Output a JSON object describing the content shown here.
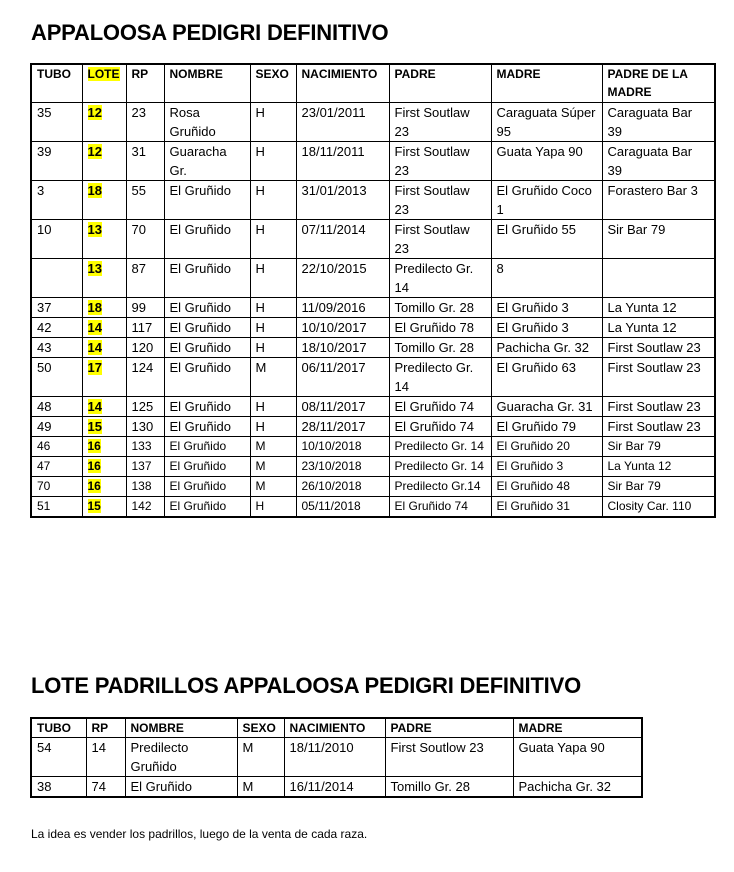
{
  "title1": "APPALOOSA PEDIGRI DEFINITIVO",
  "table1": {
    "headers": [
      "TUBO",
      "LOTE",
      "RP",
      "NOMBRE",
      "SEXO",
      "NACIMIENTO",
      "PADRE",
      "MADRE",
      "PADRE DE LA MADRE"
    ],
    "rows": [
      [
        "35",
        "12",
        "23",
        "Rosa Gruñido",
        "H",
        "23/01/2011",
        "First Soutlaw 23",
        "Caraguata Súper 95",
        "Caraguata Bar 39"
      ],
      [
        "39",
        "12",
        "31",
        "Guaracha Gr.",
        "H",
        "18/11/2011",
        "First Soutlaw 23",
        "Guata Yapa 90",
        "Caraguata Bar 39"
      ],
      [
        "3",
        "18",
        "55",
        "El Gruñido",
        "H",
        "31/01/2013",
        "First Soutlaw 23",
        "El Gruñido Coco 1",
        "Forastero Bar 3"
      ],
      [
        "10",
        "13",
        "70",
        "El Gruñido",
        "H",
        "07/11/2014",
        "First Soutlaw 23",
        "El Gruñido 55",
        "Sir Bar 79"
      ],
      [
        "",
        "13",
        "87",
        "El Gruñido",
        "H",
        "22/10/2015",
        "Predilecto Gr. 14",
        "8",
        ""
      ],
      [
        "37",
        "18",
        "99",
        "El Gruñido",
        "H",
        "11/09/2016",
        "Tomillo Gr. 28",
        "El Gruñido 3",
        "La Yunta 12"
      ],
      [
        "42",
        "14",
        "117",
        "El Gruñido",
        "H",
        "10/10/2017",
        "El Gruñido 78",
        "El Gruñido 3",
        "La Yunta 12"
      ],
      [
        "43",
        "14",
        "120",
        "El Gruñido",
        "H",
        "18/10/2017",
        "Tomillo Gr. 28",
        "Pachicha Gr. 32",
        "First Soutlaw 23"
      ],
      [
        "50",
        "17",
        "124",
        "El Gruñido",
        "M",
        "06/11/2017",
        "Predilecto Gr. 14",
        "El Gruñido 63",
        "First Soutlaw 23"
      ],
      [
        "48",
        "14",
        "125",
        "El Gruñido",
        "H",
        "08/11/2017",
        "El Gruñido 74",
        "Guaracha Gr. 31",
        "First Soutlaw 23"
      ],
      [
        "49",
        "15",
        "130",
        "El Gruñido",
        "H",
        "28/11/2017",
        "El Gruñido 74",
        "El Gruñido 79",
        "First Soutlaw 23"
      ],
      [
        "46",
        "16",
        "133",
        "El Gruñido",
        "M",
        "10/10/2018",
        "Predilecto Gr. 14",
        "El Gruñido 20",
        "Sir Bar 79"
      ],
      [
        "47",
        "16",
        "137",
        "El Gruñido",
        "M",
        "23/10/2018",
        "Predilecto Gr. 14",
        "El Gruñido 3",
        "La Yunta 12"
      ],
      [
        "70",
        "16",
        "138",
        "El Gruñido",
        "M",
        "26/10/2018",
        "Predilecto Gr.14",
        "El Gruñido 48",
        "Sir Bar 79"
      ],
      [
        "51",
        "15",
        "142",
        "El Gruñido",
        "H",
        "05/11/2018",
        "El Gruñido 74",
        "El Gruñido 31",
        "Closity Car. 110"
      ]
    ]
  },
  "title2": "LOTE PADRILLOS APPALOOSA PEDIGRI DEFINITIVO",
  "table2": {
    "headers": [
      "TUBO",
      "RP",
      "NOMBRE",
      "SEXO",
      "NACIMIENTO",
      "PADRE",
      "MADRE"
    ],
    "rows": [
      [
        "54",
        "14",
        "Predilecto Gruñido",
        "M",
        "18/11/2010",
        "First Soutlow 23",
        "Guata Yapa 90"
      ],
      [
        "38",
        "74",
        "El Gruñido",
        "M",
        "16/11/2014",
        "Tomillo Gr. 28",
        "Pachicha Gr. 32"
      ]
    ]
  },
  "note": "La idea es vender los padrillos, luego de la venta de cada raza.",
  "colors": {
    "highlight": "#ffff00"
  }
}
